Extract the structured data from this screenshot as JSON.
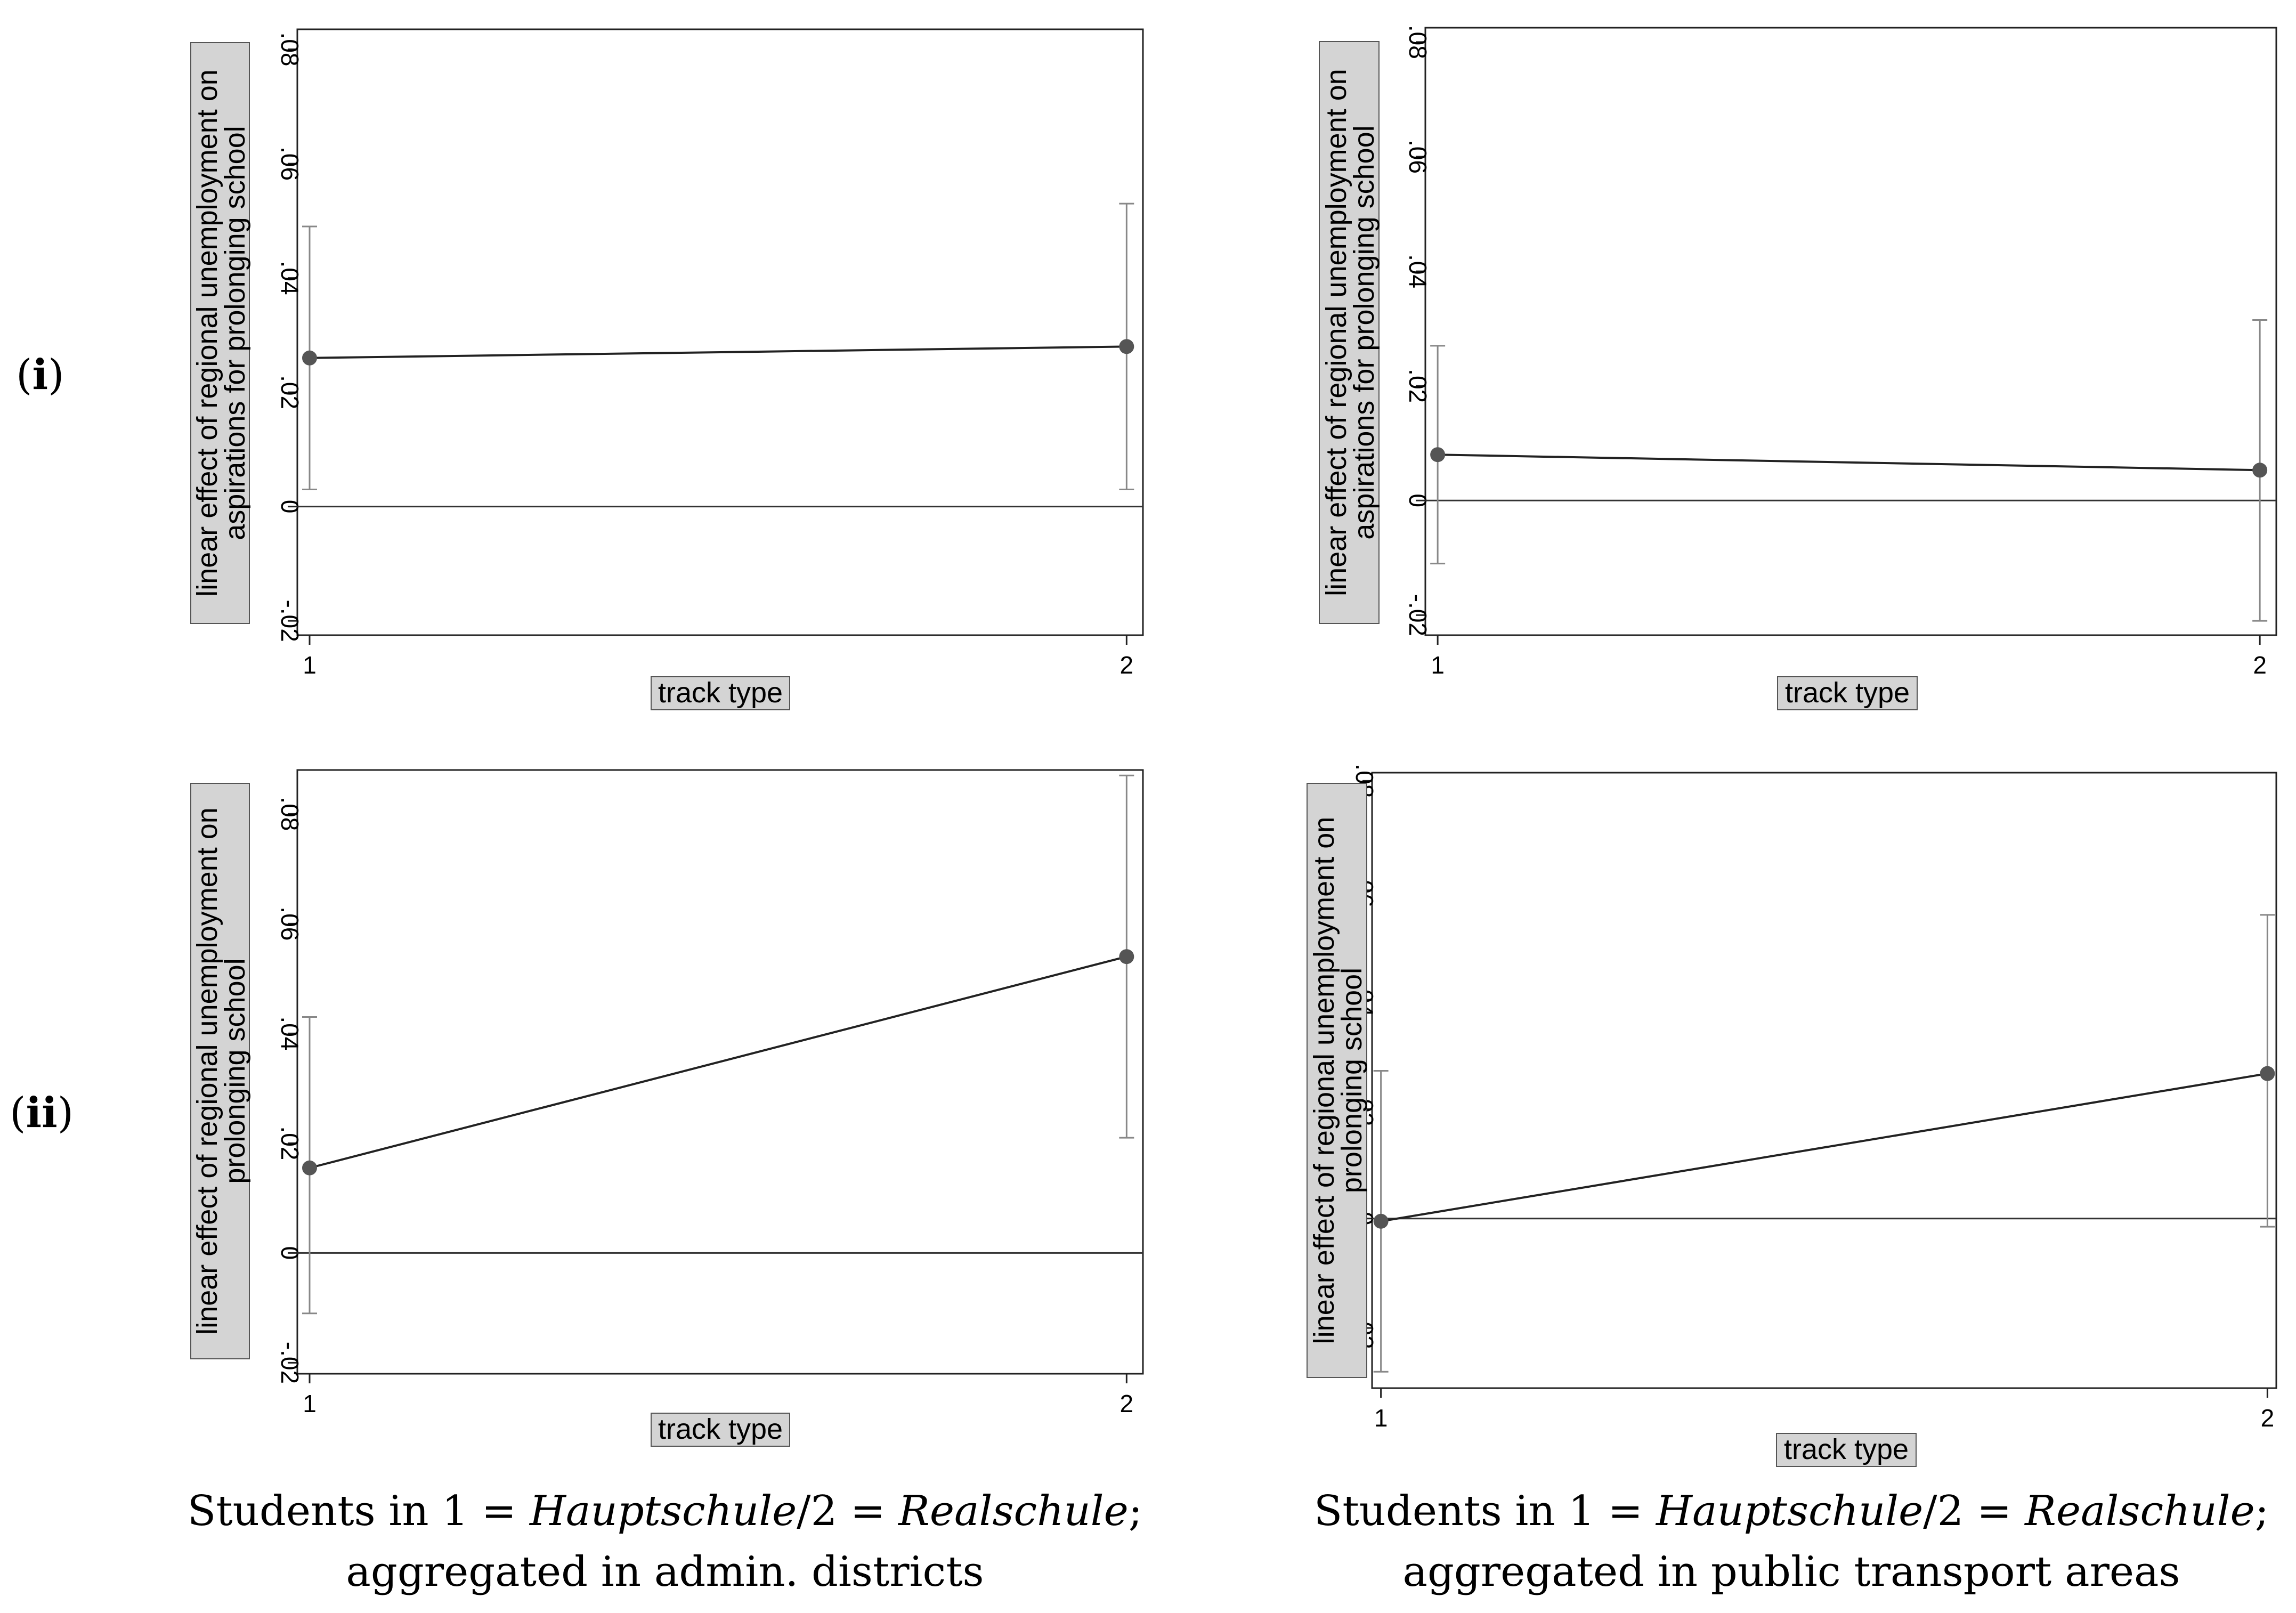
{
  "row_labels": [
    {
      "open": "(",
      "bold": "i",
      "close": ")"
    },
    {
      "open": "(",
      "bold": "ii",
      "close": ")"
    }
  ],
  "captions": [
    {
      "line1_pre": "Students in 1 = ",
      "line1_em1": "Hauptschule",
      "line1_mid": "/2 = ",
      "line1_em2": "Realschule",
      "line1_post": ";",
      "line2": "aggregated in admin. districts"
    },
    {
      "line1_pre": "Students in 1 = ",
      "line1_em1": "Hauptschule",
      "line1_mid": "/2 = ",
      "line1_em2": "Realschule",
      "line1_post": ";",
      "line2": "aggregated in public transport areas"
    }
  ],
  "colors": {
    "line": "#222222",
    "marker": "#555555",
    "ci": "#888888",
    "zero_line": "#333333"
  },
  "chart_data": [
    {
      "type": "line",
      "panel": "(i) left",
      "xlabel": "track type",
      "ylabel_lines": [
        "linear effect of regional unemployment on",
        "aspirations for prolonging school"
      ],
      "xlim": [
        0.985,
        2.02
      ],
      "ylim": [
        -0.0225,
        0.0835
      ],
      "x_ticks": [
        1,
        2
      ],
      "x_tick_labels": [
        "1",
        "2"
      ],
      "y_ticks": [
        -0.02,
        0,
        0.02,
        0.04,
        0.06,
        0.08
      ],
      "y_tick_labels": [
        "-.02",
        "0",
        ".02",
        ".04",
        ".06",
        ".08"
      ],
      "reference_line": 0,
      "grid": false,
      "points": [
        {
          "x": 1,
          "y": 0.026,
          "ci_low": 0.003,
          "ci_high": 0.049
        },
        {
          "x": 2,
          "y": 0.028,
          "ci_low": 0.003,
          "ci_high": 0.053
        }
      ]
    },
    {
      "type": "line",
      "panel": "(i) right",
      "xlabel": "track type",
      "ylabel_lines": [
        "linear effect of regional unemployment on",
        "aspirations for prolonging school"
      ],
      "xlim": [
        0.985,
        2.02
      ],
      "ylim": [
        -0.0235,
        0.0825
      ],
      "x_ticks": [
        1,
        2
      ],
      "x_tick_labels": [
        "1",
        "2"
      ],
      "y_ticks": [
        -0.02,
        0,
        0.02,
        0.04,
        0.06,
        0.08
      ],
      "y_tick_labels": [
        "-.02",
        "0",
        ".02",
        ".04",
        ".06",
        ".08"
      ],
      "reference_line": 0,
      "grid": false,
      "points": [
        {
          "x": 1,
          "y": 0.008,
          "ci_low": -0.011,
          "ci_high": 0.027
        },
        {
          "x": 2,
          "y": 0.0053,
          "ci_low": -0.021,
          "ci_high": 0.0315
        }
      ]
    },
    {
      "type": "line",
      "panel": "(ii) left",
      "xlabel": "track type",
      "ylabel_lines": [
        "linear effect of regional unemployment on",
        "prolonging school"
      ],
      "xlim": [
        0.985,
        2.02
      ],
      "ylim": [
        -0.022,
        0.088
      ],
      "x_ticks": [
        1,
        2
      ],
      "x_tick_labels": [
        "1",
        "2"
      ],
      "y_ticks": [
        -0.02,
        0,
        0.02,
        0.04,
        0.06,
        0.08
      ],
      "y_tick_labels": [
        "-.02",
        "0",
        ".02",
        ".04",
        ".06",
        ".08"
      ],
      "reference_line": 0,
      "grid": false,
      "points": [
        {
          "x": 1,
          "y": 0.0155,
          "ci_low": -0.011,
          "ci_high": 0.043
        },
        {
          "x": 2,
          "y": 0.054,
          "ci_low": 0.021,
          "ci_high": 0.087
        }
      ]
    },
    {
      "type": "line",
      "panel": "(ii) right",
      "xlabel": "track type",
      "ylabel_lines": [
        "linear effect of regional unemployment on",
        "prolonging school"
      ],
      "xlim": [
        0.99,
        2.01
      ],
      "ylim": [
        -0.031,
        0.0815
      ],
      "x_ticks": [
        1,
        2
      ],
      "x_tick_labels": [
        "1",
        "2"
      ],
      "y_ticks": [
        -0.02,
        0,
        0.02,
        0.04,
        0.06,
        0.08
      ],
      "y_tick_labels": [
        "-.02",
        "0",
        ".02",
        ".04",
        ".06",
        ".08"
      ],
      "reference_line": 0,
      "grid": false,
      "points": [
        {
          "x": 1,
          "y": -0.0005,
          "ci_low": -0.028,
          "ci_high": 0.027
        },
        {
          "x": 2,
          "y": 0.0265,
          "ci_low": -0.0015,
          "ci_high": 0.0555
        }
      ]
    }
  ]
}
